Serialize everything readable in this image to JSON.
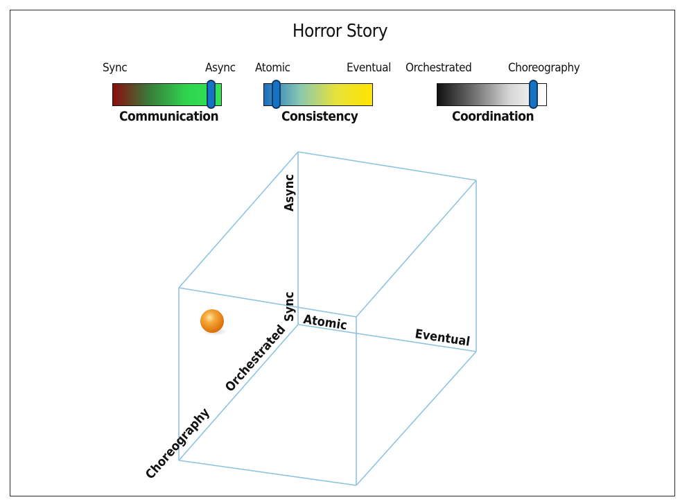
{
  "title": "Horror Story",
  "sliders": [
    {
      "id": "communication",
      "name": "Communication",
      "left_label": "Sync",
      "right_label": "Async",
      "value": 0.9,
      "gradient": [
        "#8b0d0d",
        "#3a7a3a",
        "#2fd24f",
        "#2ee655"
      ]
    },
    {
      "id": "consistency",
      "name": "Consistency",
      "left_label": "Atomic",
      "right_label": "Eventual",
      "value": 0.12,
      "gradient": [
        "#1a6fc0",
        "#89c8b0",
        "#e8e23a",
        "#ffe400"
      ]
    },
    {
      "id": "coordination",
      "name": "Coordination",
      "left_label": "Orchestrated",
      "right_label": "Choreography",
      "value": 0.88,
      "gradient": [
        "#111111",
        "#6f6f6f",
        "#d7d7d7",
        "#ffffff"
      ]
    }
  ],
  "cube": {
    "edge_color": "#8ec3e0",
    "labels": {
      "async": "Async",
      "sync": "Sync",
      "atomic": "Atomic",
      "eventual": "Eventual",
      "orchestrated": "Orchestrated",
      "choreography": "Choreography"
    },
    "marker_color": "#f39a1e"
  }
}
